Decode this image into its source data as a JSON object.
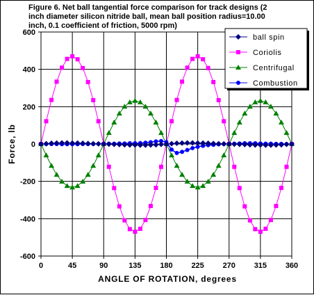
{
  "chart_data": {
    "type": "line",
    "title_lines": [
      "Figure 6.  Net ball tangential force comparison for track designs (2",
      "inch diameter silicon nitride ball, mean ball position radius=10.00",
      "inch, 0.1 coefficient of friction, 5000 rpm)"
    ],
    "xlabel": "ANGLE OF ROTATION, degrees",
    "ylabel": "Force, lb",
    "xlim": [
      0,
      360
    ],
    "ylim": [
      -600,
      600
    ],
    "xticks": [
      0,
      45,
      90,
      135,
      180,
      225,
      270,
      315,
      360
    ],
    "yticks": [
      -600,
      -400,
      -200,
      0,
      200,
      400,
      600
    ],
    "grid": true,
    "legend_position": "top-right",
    "x": [
      0,
      7.5,
      15,
      22.5,
      30,
      37.5,
      45,
      52.5,
      60,
      67.5,
      75,
      82.5,
      90,
      97.5,
      105,
      112.5,
      120,
      127.5,
      135,
      142.5,
      150,
      157.5,
      165,
      172.5,
      180,
      187.5,
      195,
      202.5,
      210,
      217.5,
      225,
      232.5,
      240,
      247.5,
      255,
      262.5,
      270,
      277.5,
      285,
      292.5,
      300,
      307.5,
      315,
      322.5,
      330,
      337.5,
      345,
      352.5,
      360
    ],
    "series": [
      {
        "name": "ball spin",
        "color": "#000080",
        "marker": "diamond",
        "values": [
          0,
          2,
          4,
          5,
          6,
          6,
          5,
          5,
          4,
          3,
          2,
          1,
          0,
          -1,
          -2,
          -3,
          -4,
          -5,
          -5,
          -6,
          -6,
          -5,
          -4,
          -2,
          0,
          2,
          4,
          5,
          6,
          6,
          5,
          5,
          4,
          3,
          2,
          1,
          0,
          -1,
          -2,
          -3,
          -4,
          -5,
          -5,
          -6,
          -6,
          -5,
          -4,
          -2,
          0
        ]
      },
      {
        "name": "Coriolis",
        "color": "#ff00ff",
        "marker": "square",
        "values": [
          0,
          122,
          236,
          334,
          409,
          456,
          470,
          454,
          407,
          332,
          235,
          122,
          0,
          -122,
          -236,
          -334,
          -409,
          -456,
          -470,
          -454,
          -407,
          -332,
          -235,
          -122,
          0,
          122,
          236,
          334,
          409,
          456,
          470,
          454,
          407,
          332,
          235,
          122,
          0,
          -122,
          -236,
          -334,
          -409,
          -456,
          -470,
          -454,
          -407,
          -332,
          -235,
          -122,
          0
        ]
      },
      {
        "name": "Centrifugal",
        "color": "#008000",
        "marker": "triangle",
        "values": [
          0,
          -60,
          -116,
          -164,
          -201,
          -224,
          -232,
          -224,
          -201,
          -164,
          -116,
          -60,
          0,
          60,
          116,
          164,
          201,
          224,
          232,
          224,
          201,
          164,
          116,
          60,
          0,
          -60,
          -116,
          -164,
          -201,
          -224,
          -232,
          -224,
          -201,
          -164,
          -116,
          -60,
          0,
          60,
          116,
          164,
          201,
          224,
          232,
          224,
          201,
          164,
          116,
          60,
          0
        ]
      },
      {
        "name": "Combustion",
        "color": "#0000ff",
        "marker": "circle",
        "values": [
          0,
          0,
          0,
          0,
          -1,
          -1,
          -1,
          -1,
          0,
          0,
          0,
          1,
          1,
          2,
          2,
          3,
          3,
          4,
          4,
          5,
          7,
          10,
          14,
          16,
          10,
          -30,
          -48,
          -42,
          -32,
          -22,
          -15,
          -10,
          -6,
          -4,
          -2,
          0,
          1,
          2,
          3,
          4,
          4,
          4,
          3,
          2,
          2,
          1,
          1,
          0,
          0
        ]
      }
    ]
  }
}
